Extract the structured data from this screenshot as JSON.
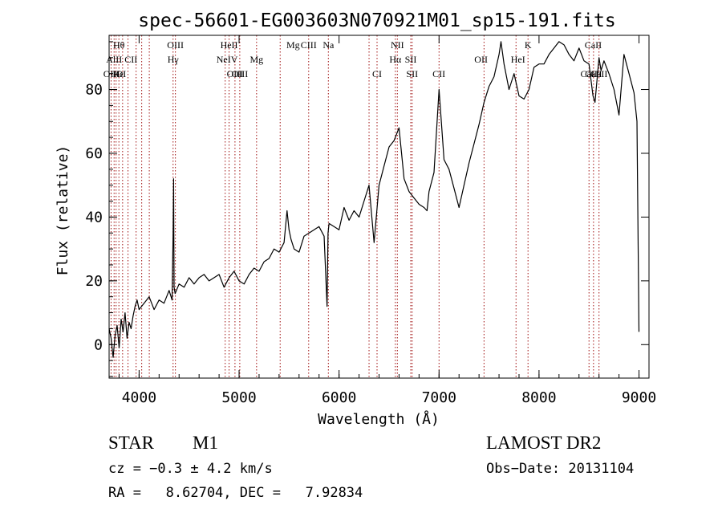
{
  "chart_data": {
    "type": "line",
    "title": "spec-56601-EG003603N070921M01_sp15-191.fits",
    "xlabel": "Wavelength (Å)",
    "ylabel": "Flux (relative)",
    "xlim": [
      3700,
      9100
    ],
    "ylim": [
      -10.5,
      97
    ],
    "x_ticks": [
      4000,
      5000,
      6000,
      7000,
      8000,
      9000
    ],
    "y_ticks": [
      0,
      20,
      40,
      60,
      80
    ],
    "series": [
      {
        "color": "#000000",
        "x": [
          3700,
          3720,
          3740,
          3760,
          3780,
          3800,
          3820,
          3840,
          3860,
          3880,
          3900,
          3920,
          3940,
          3960,
          3980,
          4000,
          4050,
          4100,
          4150,
          4200,
          4250,
          4300,
          4330,
          4340,
          4345,
          4350,
          4360,
          4400,
          4450,
          4500,
          4550,
          4600,
          4650,
          4700,
          4750,
          4800,
          4850,
          4900,
          4950,
          5000,
          5050,
          5100,
          5150,
          5200,
          5250,
          5300,
          5350,
          5400,
          5450,
          5480,
          5500,
          5520,
          5550,
          5600,
          5650,
          5700,
          5750,
          5800,
          5850,
          5880,
          5890,
          5900,
          5950,
          6000,
          6050,
          6100,
          6150,
          6200,
          6250,
          6300,
          6350,
          6400,
          6450,
          6500,
          6550,
          6600,
          6650,
          6700,
          6750,
          6800,
          6850,
          6880,
          6900,
          6950,
          7000,
          7050,
          7100,
          7150,
          7200,
          7250,
          7300,
          7350,
          7400,
          7450,
          7500,
          7550,
          7600,
          7620,
          7650,
          7700,
          7750,
          7800,
          7850,
          7900,
          7950,
          8000,
          8050,
          8100,
          8150,
          8200,
          8250,
          8300,
          8350,
          8400,
          8450,
          8500,
          8540,
          8560,
          8600,
          8620,
          8650,
          8700,
          8750,
          8800,
          8850,
          8900,
          8950,
          8980,
          9000
        ],
        "y": [
          5,
          2,
          -4,
          3,
          6,
          -1,
          8,
          4,
          10,
          2,
          7,
          5,
          9,
          12,
          14,
          11,
          13,
          15,
          11,
          14,
          13,
          17,
          14,
          35,
          52,
          18,
          16,
          19,
          18,
          21,
          19,
          21,
          22,
          20,
          21,
          22,
          18,
          21,
          23,
          20,
          19,
          22,
          24,
          23,
          26,
          27,
          30,
          29,
          32,
          42,
          36,
          33,
          30,
          29,
          34,
          35,
          36,
          37,
          34,
          12,
          35,
          38,
          37,
          36,
          43,
          39,
          42,
          40,
          45,
          50,
          32,
          50,
          56,
          62,
          64,
          68,
          52,
          48,
          46,
          44,
          43,
          42,
          48,
          54,
          80,
          58,
          55,
          49,
          43,
          50,
          57,
          63,
          69,
          76,
          81,
          84,
          91,
          95,
          88,
          80,
          85,
          78,
          77,
          80,
          87,
          88,
          88,
          91,
          93,
          95,
          94,
          91,
          89,
          93,
          89,
          88,
          78,
          76,
          90,
          86,
          89,
          85,
          80,
          72,
          91,
          85,
          79,
          70,
          4
        ]
      }
    ],
    "lines": [
      {
        "label": "Hθ",
        "wave": 3798,
        "row": 0
      },
      {
        "label": "AlII",
        "wave": 3750,
        "row": 1
      },
      {
        "label": "OIII",
        "wave": 3725,
        "row": 2
      },
      {
        "label": "Hε",
        "wave": 3790,
        "row": 2
      },
      {
        "label": "CII",
        "wave": 3919,
        "row": 1
      },
      {
        "label": "OI",
        "wave": 3820,
        "row": 2
      },
      {
        "label": "OIII",
        "wave": 4363,
        "row": 0
      },
      {
        "label": "Hγ",
        "wave": 4340,
        "row": 1
      },
      {
        "label": "HeII",
        "wave": 4900,
        "row": 0
      },
      {
        "label": "NeIV",
        "wave": 4880,
        "row": 1
      },
      {
        "label": "OIII",
        "wave": 4959,
        "row": 2
      },
      {
        "label": "OIII",
        "wave": 5007,
        "row": 2
      },
      {
        "label": "Mg",
        "wave": 5175,
        "row": 1
      },
      {
        "label": "Mg",
        "wave": 5540,
        "row": 0
      },
      {
        "label": "CIII",
        "wave": 5696,
        "row": 0
      },
      {
        "label": "Na",
        "wave": 5893,
        "row": 0
      },
      {
        "label": "CI",
        "wave": 6380,
        "row": 2
      },
      {
        "label": "NII",
        "wave": 6583,
        "row": 0
      },
      {
        "label": "Hα",
        "wave": 6563,
        "row": 1
      },
      {
        "label": "SII",
        "wave": 6717,
        "row": 1
      },
      {
        "label": "SII",
        "wave": 6731,
        "row": 2
      },
      {
        "label": "CII",
        "wave": 6999,
        "row": 2
      },
      {
        "label": "OII",
        "wave": 7420,
        "row": 1
      },
      {
        "label": "HeI",
        "wave": 7790,
        "row": 1
      },
      {
        "label": "K",
        "wave": 7890,
        "row": 0
      },
      {
        "label": "CaII",
        "wave": 8542,
        "row": 0
      },
      {
        "label": "CaII",
        "wave": 8500,
        "row": 2
      },
      {
        "label": "CaII",
        "wave": 8545,
        "row": 2
      },
      {
        "label": "CaII",
        "wave": 8600,
        "row": 2
      }
    ],
    "vline_waves": [
      3720,
      3750,
      3770,
      3798,
      3835,
      3889,
      3970,
      4026,
      4102,
      4340,
      4363,
      4861,
      4900,
      4959,
      5007,
      5175,
      5411,
      5696,
      5893,
      6300,
      6380,
      6563,
      6583,
      6717,
      6731,
      7000,
      7450,
      7770,
      7890,
      8500,
      8545,
      8600
    ]
  },
  "info": {
    "object_type": "STAR",
    "subclass": "M1",
    "survey": "LAMOST DR2",
    "redshift": "cz = −0.3 ± 4.2 km/s",
    "obs_date": "Obs−Date: 20131104",
    "coords": "RA =   8.62704, DEC =   7.92834"
  }
}
